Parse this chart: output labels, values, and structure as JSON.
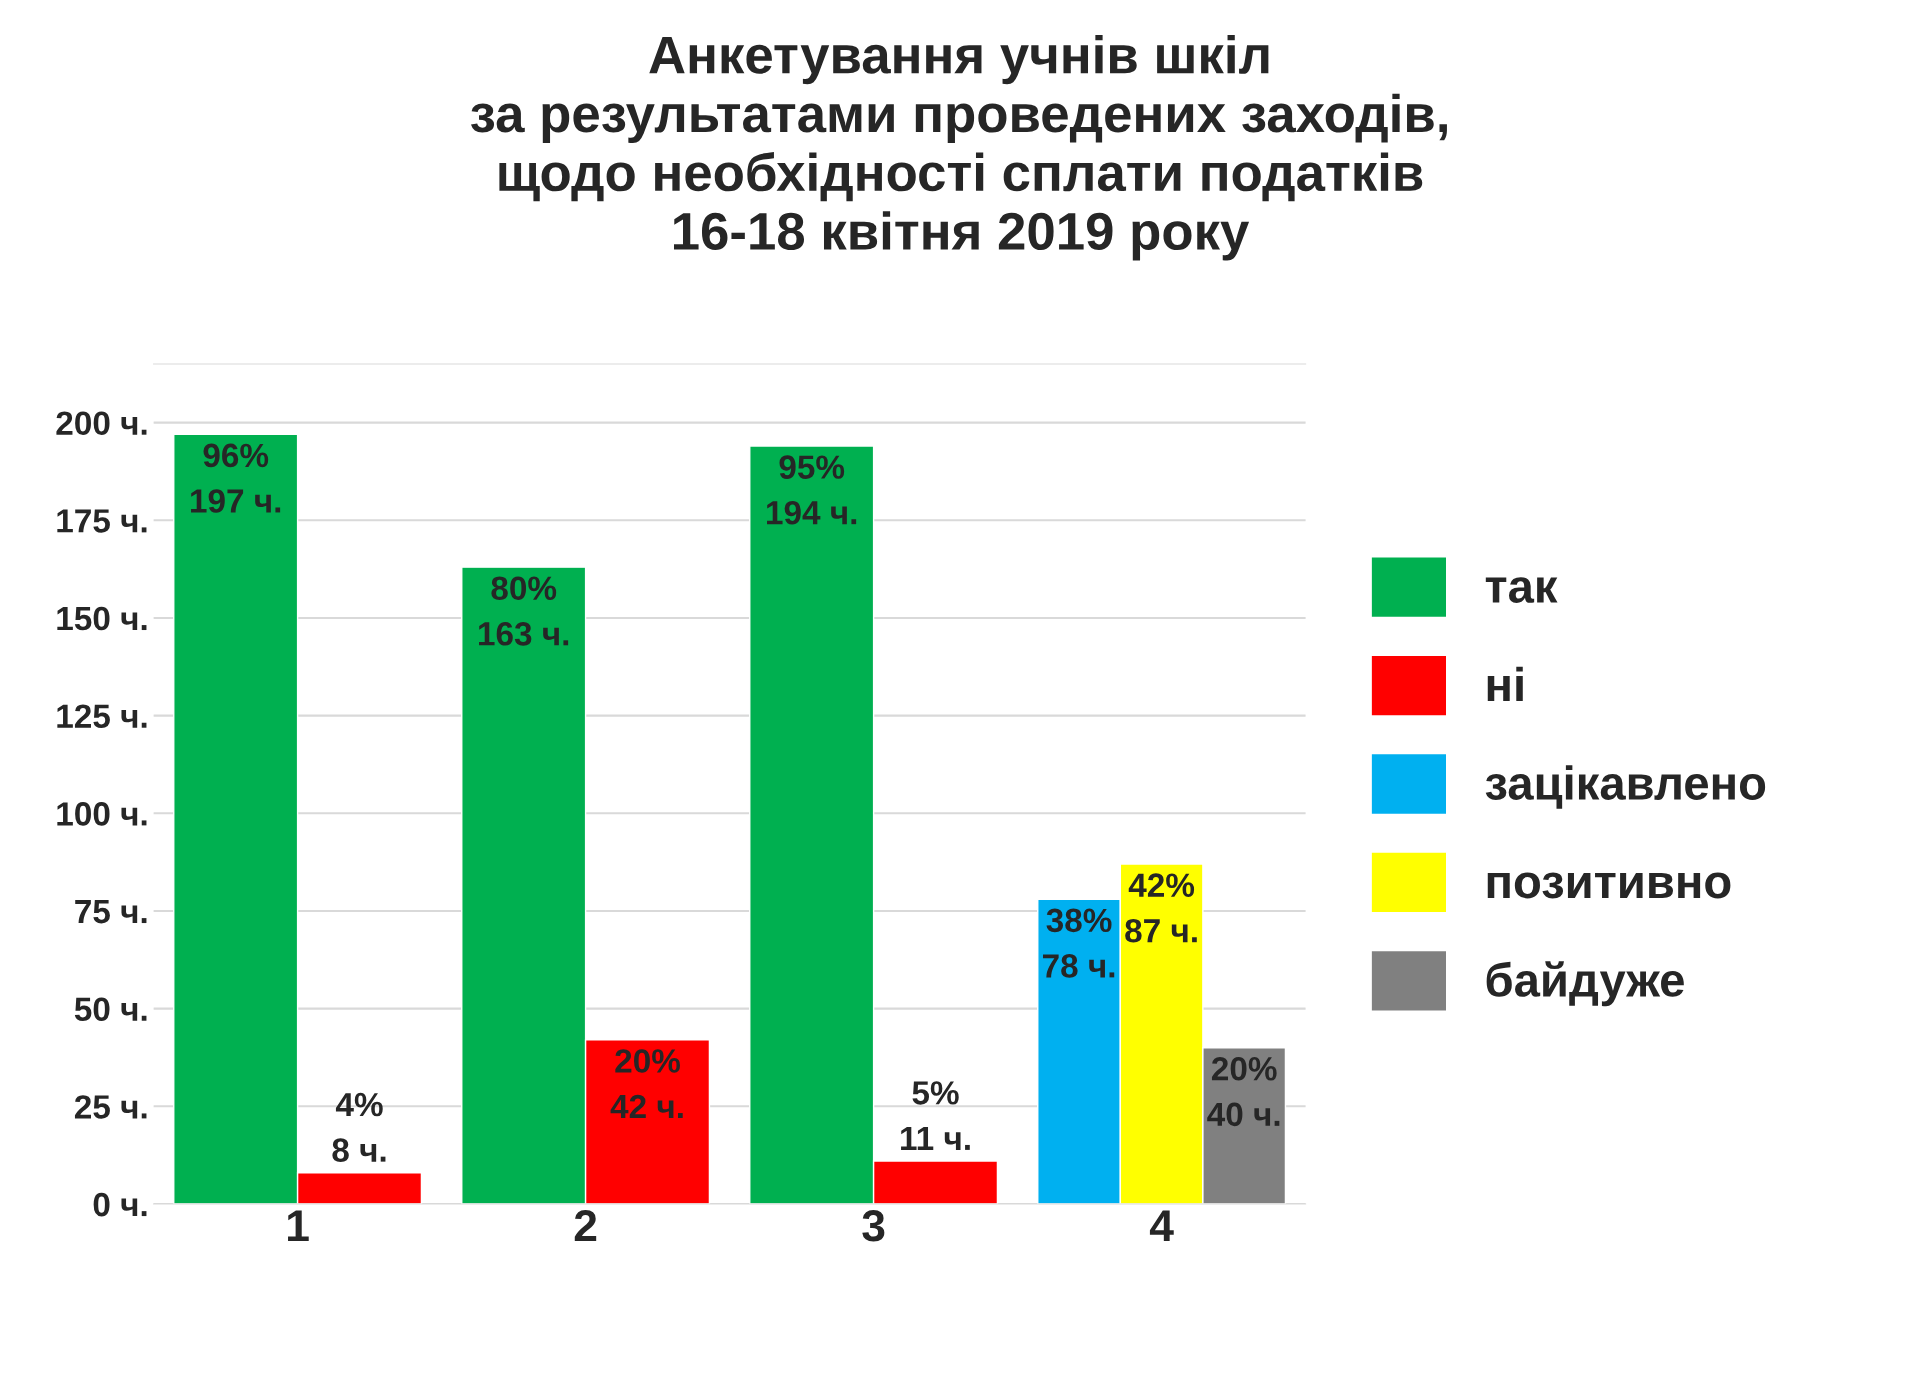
{
  "chart_data": {
    "type": "bar",
    "title": "Анкетування учнів шкіл\nза результатами проведених заходів,\nщодо необхідності сплати податків\n16-18 квітня 2019 року",
    "categories": [
      "1",
      "2",
      "3",
      "4"
    ],
    "series": [
      {
        "name": "так",
        "color": "#00b050",
        "values": [
          197,
          163,
          194,
          null
        ],
        "value_labels": [
          "96%\n197 ч.",
          "80%\n163 ч.",
          "95%\n194 ч.",
          null
        ]
      },
      {
        "name": "ні",
        "color": "#ff0000",
        "values": [
          8,
          42,
          11,
          null
        ],
        "value_labels": [
          "4%\n8 ч.",
          "20%\n42 ч.",
          "5%\n11 ч.",
          null
        ]
      },
      {
        "name": "зацікавлено",
        "color": "#00b0f0",
        "values": [
          null,
          null,
          null,
          78
        ],
        "value_labels": [
          null,
          null,
          null,
          "38%\n78 ч."
        ]
      },
      {
        "name": "позитивно",
        "color": "#ffff00",
        "values": [
          null,
          null,
          null,
          87
        ],
        "value_labels": [
          null,
          null,
          null,
          "42%\n87 ч."
        ]
      },
      {
        "name": "байдуже",
        "color": "#808080",
        "values": [
          null,
          null,
          null,
          40
        ],
        "value_labels": [
          null,
          null,
          null,
          "20%\n40 ч."
        ]
      }
    ],
    "ylim": [
      0,
      215
    ],
    "yticks": [
      {
        "value": 0,
        "label": "0 ч."
      },
      {
        "value": 25,
        "label": "25 ч."
      },
      {
        "value": 50,
        "label": "50 ч."
      },
      {
        "value": 75,
        "label": "75 ч."
      },
      {
        "value": 100,
        "label": "100 ч."
      },
      {
        "value": 125,
        "label": "125 ч."
      },
      {
        "value": 150,
        "label": "150 ч."
      },
      {
        "value": 175,
        "label": "175 ч."
      },
      {
        "value": 200,
        "label": "200 ч."
      }
    ],
    "grid": "y",
    "legend": "right"
  }
}
